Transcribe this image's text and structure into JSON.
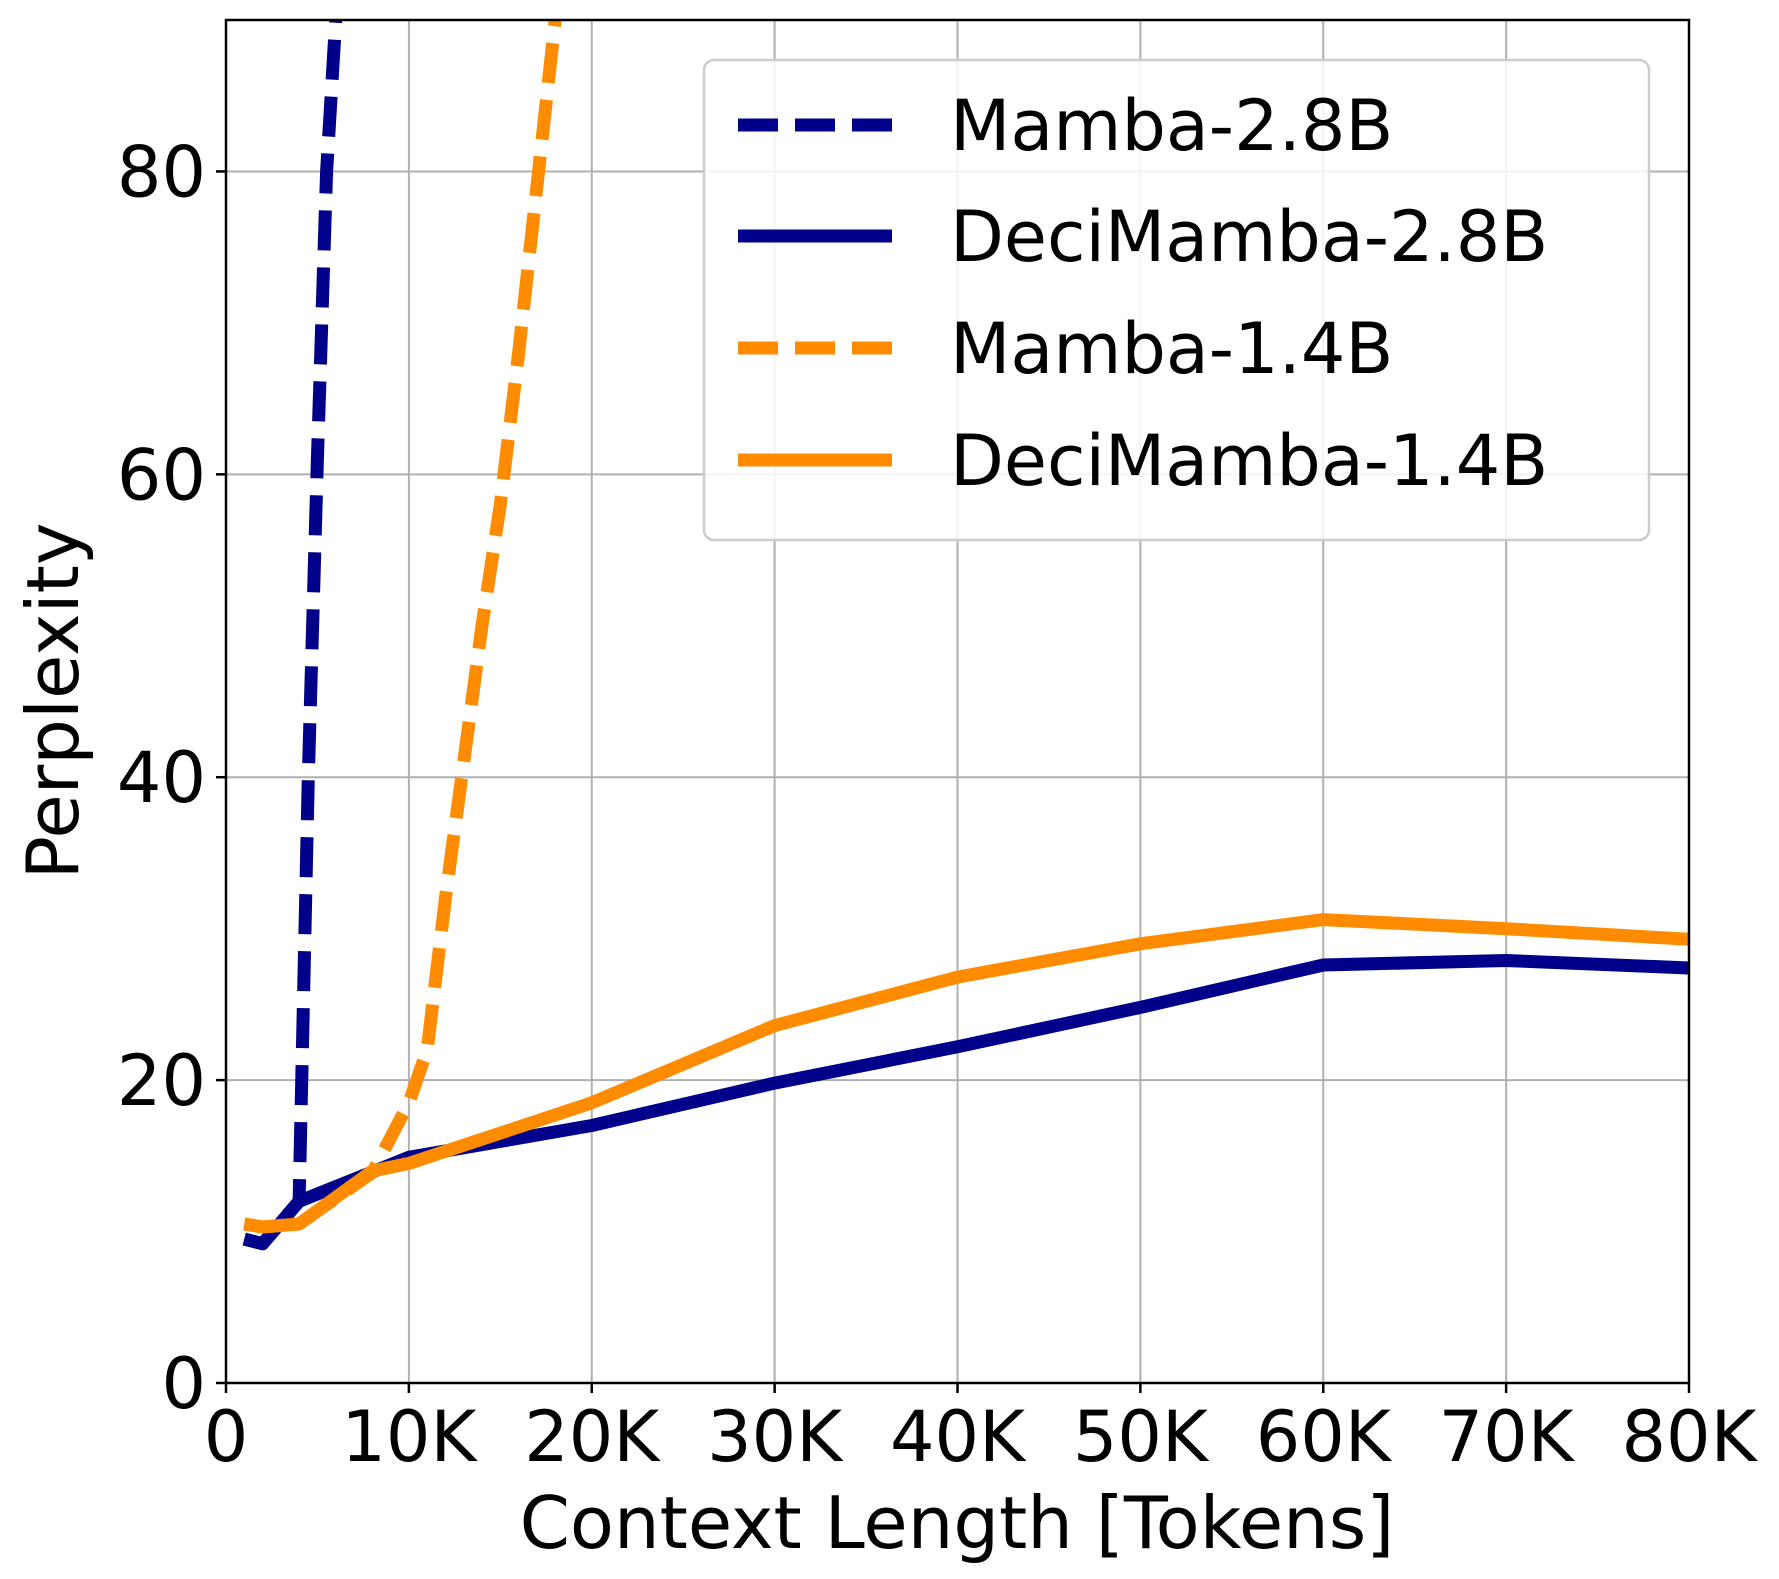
{
  "chart_data": {
    "type": "line",
    "title": "",
    "xlabel": "Context Length [Tokens]",
    "ylabel": "Perplexity",
    "xlim": [
      0,
      80000
    ],
    "ylim": [
      0,
      90
    ],
    "grid": true,
    "legend_position": "top-right",
    "x_ticks": [
      {
        "value": 0,
        "label": "0"
      },
      {
        "value": 10000,
        "label": "10K"
      },
      {
        "value": 20000,
        "label": "20K"
      },
      {
        "value": 30000,
        "label": "30K"
      },
      {
        "value": 40000,
        "label": "40K"
      },
      {
        "value": 50000,
        "label": "50K"
      },
      {
        "value": 60000,
        "label": "60K"
      },
      {
        "value": 70000,
        "label": "70K"
      },
      {
        "value": 80000,
        "label": "80K"
      }
    ],
    "y_ticks": [
      {
        "value": 0,
        "label": "0"
      },
      {
        "value": 20,
        "label": "20"
      },
      {
        "value": 40,
        "label": "40"
      },
      {
        "value": 60,
        "label": "60"
      },
      {
        "value": 80,
        "label": "80"
      }
    ],
    "series": [
      {
        "name": "Mamba-2.8B",
        "color": "#00008b",
        "style": "dashed",
        "points": [
          [
            1000,
            9.5
          ],
          [
            2000,
            9.2
          ],
          [
            4000,
            12.0
          ],
          [
            4500,
            40.0
          ],
          [
            5000,
            61.0
          ],
          [
            5500,
            80.0
          ],
          [
            6000,
            90.0
          ]
        ]
      },
      {
        "name": "DeciMamba-2.8B",
        "color": "#00008b",
        "style": "solid",
        "points": [
          [
            1000,
            9.5
          ],
          [
            2000,
            9.2
          ],
          [
            4000,
            12.0
          ],
          [
            10000,
            14.9
          ],
          [
            20000,
            17.0
          ],
          [
            30000,
            19.8
          ],
          [
            40000,
            22.2
          ],
          [
            50000,
            24.8
          ],
          [
            60000,
            27.6
          ],
          [
            70000,
            27.9
          ],
          [
            80000,
            27.4
          ]
        ]
      },
      {
        "name": "Mamba-1.4B",
        "color": "#ff8c00",
        "style": "dashed",
        "points": [
          [
            1000,
            10.5
          ],
          [
            2000,
            10.3
          ],
          [
            4000,
            10.5
          ],
          [
            8000,
            13.9
          ],
          [
            10000,
            18.5
          ],
          [
            11000,
            22.0
          ],
          [
            12000,
            32.0
          ],
          [
            14000,
            50.0
          ],
          [
            15000,
            58.0
          ],
          [
            16000,
            68.0
          ],
          [
            18000,
            90.0
          ]
        ]
      },
      {
        "name": "DeciMamba-1.4B",
        "color": "#ff8c00",
        "style": "solid",
        "points": [
          [
            1000,
            10.5
          ],
          [
            2000,
            10.3
          ],
          [
            4000,
            10.5
          ],
          [
            8000,
            14.0
          ],
          [
            10000,
            14.5
          ],
          [
            20000,
            18.5
          ],
          [
            30000,
            23.6
          ],
          [
            40000,
            26.8
          ],
          [
            50000,
            29.0
          ],
          [
            60000,
            30.6
          ],
          [
            70000,
            30.0
          ],
          [
            80000,
            29.3
          ]
        ]
      }
    ]
  }
}
